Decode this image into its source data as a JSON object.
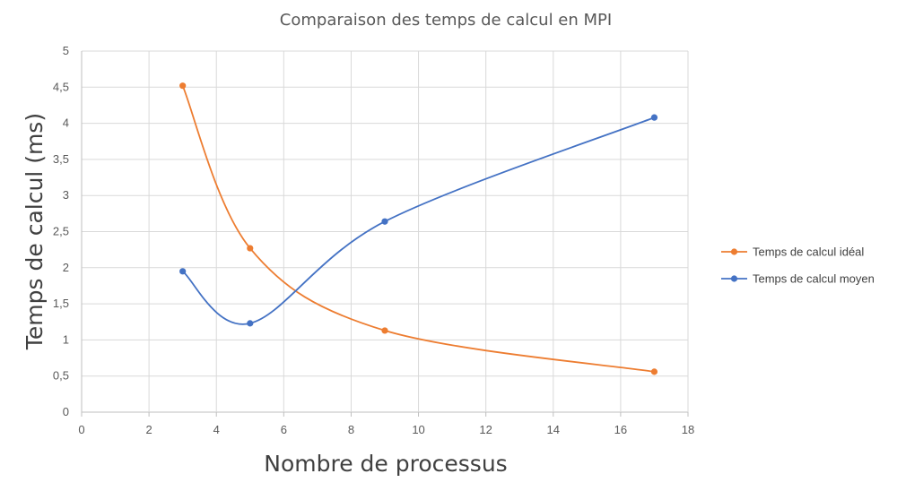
{
  "chart_data": {
    "type": "line",
    "title": "Comparaison des temps de calcul en MPI",
    "xlabel": "Nombre de processus",
    "ylabel": "Temps de calcul (ms)",
    "xlim": [
      0,
      18
    ],
    "ylim": [
      0,
      5
    ],
    "x_ticks": [
      "0",
      "2",
      "4",
      "6",
      "8",
      "10",
      "12",
      "14",
      "16",
      "18"
    ],
    "y_ticks": [
      "0",
      "0,5",
      "1",
      "1,5",
      "2",
      "2,5",
      "3",
      "3,5",
      "4",
      "4,5",
      "5"
    ],
    "grid": true,
    "smooth": true,
    "legend_position": "right",
    "series": [
      {
        "name": "Temps de calcul idéal",
        "color": "#ED7D31",
        "x": [
          3,
          5,
          9,
          17
        ],
        "y": [
          4.52,
          2.27,
          1.13,
          0.56
        ]
      },
      {
        "name": "Temps de calcul moyen",
        "color": "#4472C4",
        "x": [
          3,
          5,
          9,
          17
        ],
        "y": [
          1.95,
          1.23,
          2.64,
          4.08
        ]
      }
    ]
  }
}
